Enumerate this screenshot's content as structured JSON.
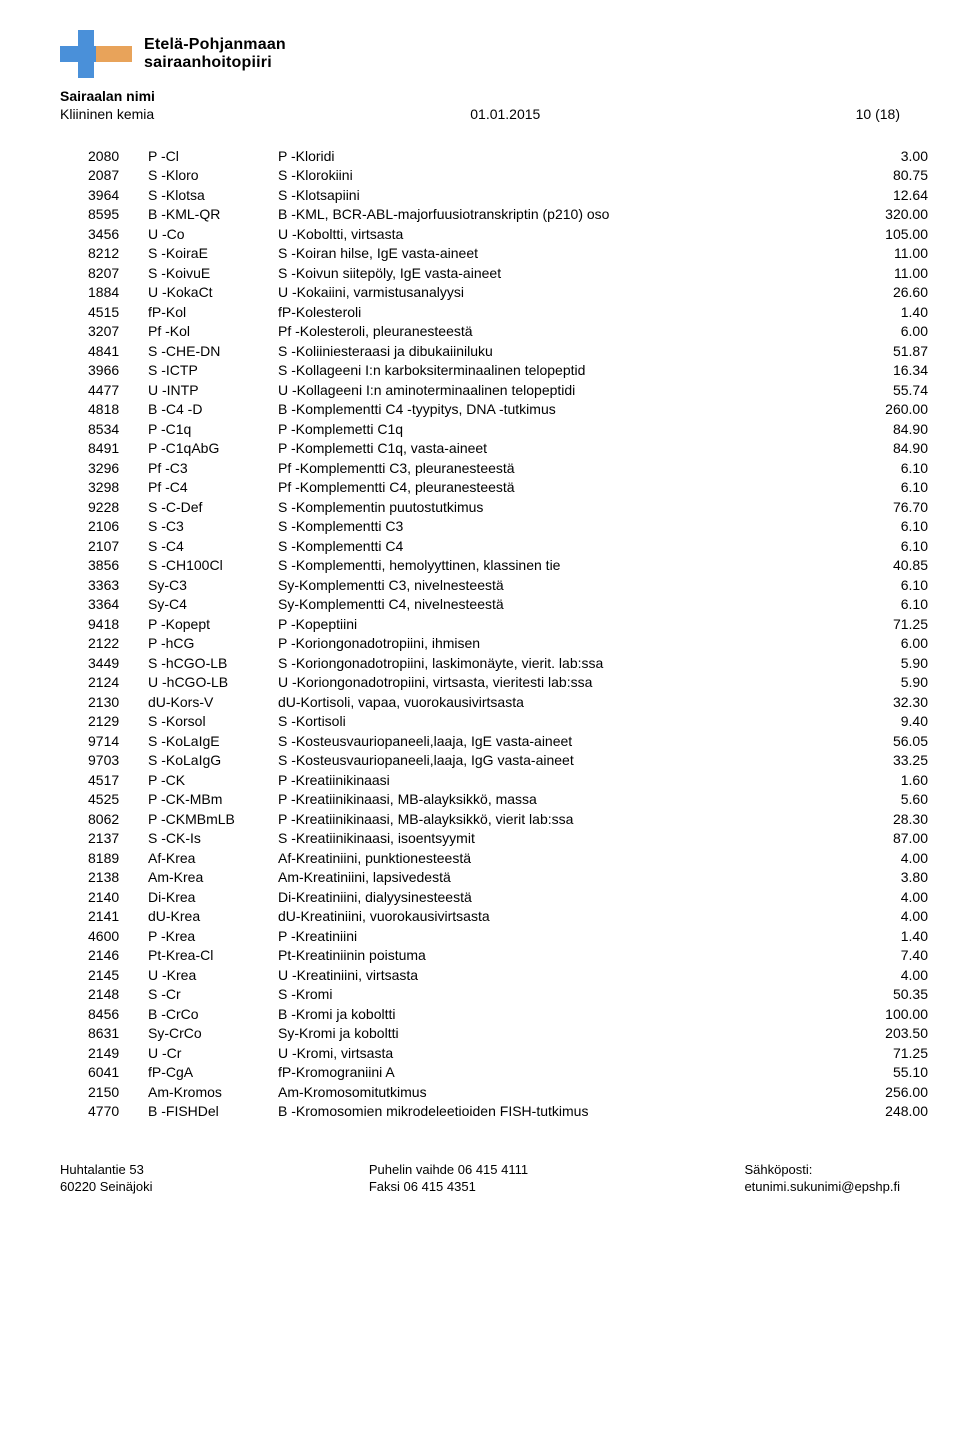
{
  "logo": {
    "line1": "Etelä-Pohjanmaan",
    "line2": "sairaanhoitopiiri",
    "colors": {
      "blue": "#4a90d9",
      "orange": "#e8a35a",
      "text": "#000000"
    }
  },
  "header": {
    "hospital_label": "Sairaalan nimi",
    "department": "Kliininen kemia",
    "date": "01.01.2015",
    "page": "10 (18)"
  },
  "footer": {
    "addr1": "Huhtalantie 53",
    "addr2": "60220 Seinäjoki",
    "phone": "Puhelin vaihde 06 415 4111",
    "fax": "Faksi 06 415 4351",
    "email_label": "Sähköposti:",
    "email": "etunimi.sukunimi@epshp.fi"
  },
  "table": {
    "columns": [
      "code",
      "abbr",
      "desc",
      "value"
    ],
    "rows": [
      [
        "2080",
        "P -Cl",
        "P -Kloridi",
        "3.00"
      ],
      [
        "2087",
        "S -Kloro",
        "S -Klorokiini",
        "80.75"
      ],
      [
        "3964",
        "S -Klotsa",
        "S -Klotsapiini",
        "12.64"
      ],
      [
        "8595",
        "B -KML-QR",
        "B -KML, BCR-ABL-majorfuusiotranskriptin (p210) oso",
        "320.00"
      ],
      [
        "3456",
        "U -Co",
        "U -Koboltti, virtsasta",
        "105.00"
      ],
      [
        "8212",
        "S -KoiraE",
        "S -Koiran hilse, IgE vasta-aineet",
        "11.00"
      ],
      [
        "8207",
        "S -KoivuE",
        "S -Koivun siitepöly, IgE vasta-aineet",
        "11.00"
      ],
      [
        "1884",
        "U -KokaCt",
        "U -Kokaiini, varmistusanalyysi",
        "26.60"
      ],
      [
        "4515",
        "fP-Kol",
        "fP-Kolesteroli",
        "1.40"
      ],
      [
        "3207",
        "Pf -Kol",
        "Pf -Kolesteroli, pleuranesteestä",
        "6.00"
      ],
      [
        "4841",
        "S -CHE-DN",
        "S -Koliiniesteraasi ja dibukaiiniluku",
        "51.87"
      ],
      [
        "3966",
        "S -ICTP",
        "S -Kollageeni I:n karboksiterminaalinen telopeptid",
        "16.34"
      ],
      [
        "4477",
        "U -INTP",
        "U -Kollageeni I:n aminoterminaalinen telopeptidi",
        "55.74"
      ],
      [
        "4818",
        "B -C4 -D",
        "B -Komplementti C4 -tyypitys, DNA -tutkimus",
        "260.00"
      ],
      [
        "8534",
        "P -C1q",
        "P -Komplemetti C1q",
        "84.90"
      ],
      [
        "8491",
        "P -C1qAbG",
        "P -Komplemetti C1q, vasta-aineet",
        "84.90"
      ],
      [
        "3296",
        "Pf -C3",
        "Pf -Komplementti C3, pleuranesteestä",
        "6.10"
      ],
      [
        "3298",
        "Pf -C4",
        "Pf -Komplementti C4, pleuranesteestä",
        "6.10"
      ],
      [
        "9228",
        "S -C-Def",
        "S -Komplementin puutostutkimus",
        "76.70"
      ],
      [
        "2106",
        "S -C3",
        "S -Komplementti C3",
        "6.10"
      ],
      [
        "2107",
        "S -C4",
        "S -Komplementti C4",
        "6.10"
      ],
      [
        "3856",
        "S -CH100Cl",
        "S -Komplementti, hemolyyttinen, klassinen tie",
        "40.85"
      ],
      [
        "3363",
        "Sy-C3",
        "Sy-Komplementti C3, nivelnesteestä",
        "6.10"
      ],
      [
        "3364",
        "Sy-C4",
        "Sy-Komplementti C4, nivelnesteestä",
        "6.10"
      ],
      [
        "9418",
        "P -Kopept",
        "P -Kopeptiini",
        "71.25"
      ],
      [
        "2122",
        "P -hCG",
        "P -Koriongonadotropiini, ihmisen",
        "6.00"
      ],
      [
        "3449",
        "S -hCGO-LB",
        "S -Koriongonadotropiini, laskimonäyte, vierit. lab:ssa",
        "5.90"
      ],
      [
        "2124",
        "U -hCGO-LB",
        "U -Koriongonadotropiini, virtsasta, vieritesti lab:ssa",
        "5.90"
      ],
      [
        "2130",
        "dU-Kors-V",
        "dU-Kortisoli, vapaa, vuorokausivirtsasta",
        "32.30"
      ],
      [
        "2129",
        "S -Korsol",
        "S -Kortisoli",
        "9.40"
      ],
      [
        "9714",
        "S -KoLaIgE",
        "S -Kosteusvauriopaneeli,laaja, IgE vasta-aineet",
        "56.05"
      ],
      [
        "9703",
        "S -KoLaIgG",
        "S -Kosteusvauriopaneeli,laaja, IgG vasta-aineet",
        "33.25"
      ],
      [
        "4517",
        "P -CK",
        "P -Kreatiinikinaasi",
        "1.60"
      ],
      [
        "4525",
        "P -CK-MBm",
        "P -Kreatiinikinaasi, MB-alayksikkö, massa",
        "5.60"
      ],
      [
        "8062",
        "P -CKMBmLB",
        "P -Kreatiinikinaasi, MB-alayksikkö, vierit lab:ssa",
        "28.30"
      ],
      [
        "2137",
        "S -CK-Is",
        "S -Kreatiinikinaasi, isoentsyymit",
        "87.00"
      ],
      [
        "8189",
        "Af-Krea",
        "Af-Kreatiniini, punktionesteestä",
        "4.00"
      ],
      [
        "2138",
        "Am-Krea",
        "Am-Kreatiniini, lapsivedestä",
        "3.80"
      ],
      [
        "2140",
        "Di-Krea",
        "Di-Kreatiniini, dialyysinesteestä",
        "4.00"
      ],
      [
        "2141",
        "dU-Krea",
        "dU-Kreatiniini, vuorokausivirtsasta",
        "4.00"
      ],
      [
        "4600",
        "P -Krea",
        "P -Kreatiniini",
        "1.40"
      ],
      [
        "2146",
        "Pt-Krea-Cl",
        "Pt-Kreatiniinin poistuma",
        "7.40"
      ],
      [
        "2145",
        "U -Krea",
        "U -Kreatiniini, virtsasta",
        "4.00"
      ],
      [
        "2148",
        "S -Cr",
        "S -Kromi",
        "50.35"
      ],
      [
        "8456",
        "B -CrCo",
        "B -Kromi ja koboltti",
        "100.00"
      ],
      [
        "8631",
        "Sy-CrCo",
        "Sy-Kromi ja koboltti",
        "203.50"
      ],
      [
        "2149",
        "U -Cr",
        "U -Kromi, virtsasta",
        "71.25"
      ],
      [
        "6041",
        "fP-CgA",
        "fP-Kromograniini A",
        "55.10"
      ],
      [
        "2150",
        "Am-Kromos",
        "Am-Kromosomitutkimus",
        "256.00"
      ],
      [
        "4770",
        "B -FISHDel",
        "B -Kromosomien mikrodeleetioiden FISH-tutkimus",
        "248.00"
      ]
    ]
  }
}
